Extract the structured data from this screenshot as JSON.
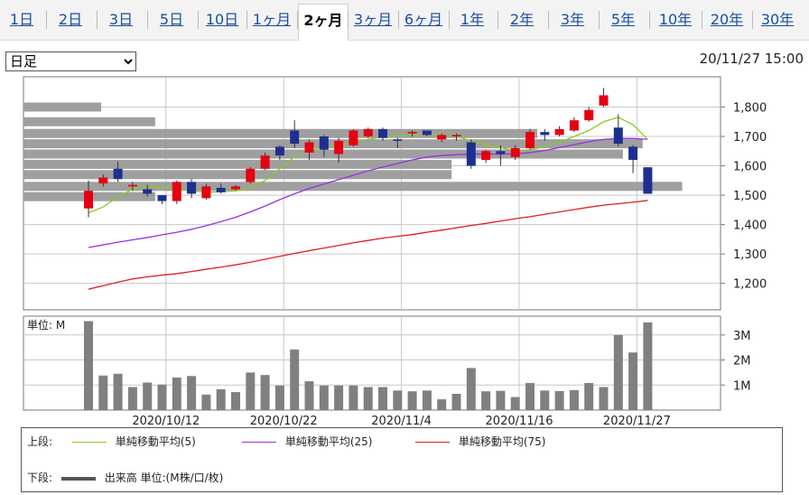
{
  "tabs": [
    {
      "label": "1日",
      "active": false
    },
    {
      "label": "2日",
      "active": false
    },
    {
      "label": "3日",
      "active": false
    },
    {
      "label": "5日",
      "active": false
    },
    {
      "label": "10日",
      "active": false
    },
    {
      "label": "1ヶ月",
      "active": false
    },
    {
      "label": "2ヶ月",
      "active": true
    },
    {
      "label": "3ヶ月",
      "active": false
    },
    {
      "label": "6ヶ月",
      "active": false
    },
    {
      "label": "1年",
      "active": false
    },
    {
      "label": "2年",
      "active": false
    },
    {
      "label": "3年",
      "active": false
    },
    {
      "label": "5年",
      "active": false
    },
    {
      "label": "10年",
      "active": false
    },
    {
      "label": "20年",
      "active": false
    },
    {
      "label": "30年",
      "active": false
    }
  ],
  "select": {
    "value": "日足",
    "options": [
      "日足"
    ]
  },
  "timestamp": "20/11/27 15:00",
  "legend": {
    "upper_label": "上段:",
    "lower_label": "下段:",
    "ma5": "単純移動平均(5)",
    "ma25": "単純移動平均(25)",
    "ma75": "単純移動平均(75)",
    "volume": "出来高 単位:(M株/口/枚)"
  },
  "colors": {
    "up": "#e60012",
    "down": "#1f2f8f",
    "ma5": "#88cc22",
    "ma25": "#9b30e0",
    "ma75": "#e02020",
    "volume": "#808080",
    "profile": "#9a9a9a",
    "grid": "#c8c8c8"
  },
  "chart_data": {
    "type": "candlestick",
    "price_ylim": [
      1150,
      1900
    ],
    "price_ticks": [
      "1,800",
      "1,700",
      "1,600",
      "1,500",
      "1,400",
      "1,300",
      "1,200"
    ],
    "volume_ylim": [
      0,
      3.75
    ],
    "volume_ticks": [
      "3M",
      "2M",
      "1M"
    ],
    "volume_unit_label": "単位: M",
    "x_tick_labels": [
      {
        "label": "2020/10/12",
        "index": 6
      },
      {
        "label": "2020/10/22",
        "index": 14
      },
      {
        "label": "2020/11/4",
        "index": 22
      },
      {
        "label": "2020/11/16",
        "index": 30
      },
      {
        "label": "2020/11/27",
        "index": 38
      }
    ],
    "candles": [
      {
        "o": 1455,
        "h": 1550,
        "l": 1425,
        "c": 1515
      },
      {
        "o": 1540,
        "h": 1570,
        "l": 1530,
        "c": 1560
      },
      {
        "o": 1590,
        "h": 1615,
        "l": 1545,
        "c": 1555
      },
      {
        "o": 1530,
        "h": 1545,
        "l": 1515,
        "c": 1535
      },
      {
        "o": 1520,
        "h": 1535,
        "l": 1495,
        "c": 1505
      },
      {
        "o": 1500,
        "h": 1500,
        "l": 1470,
        "c": 1480
      },
      {
        "o": 1480,
        "h": 1550,
        "l": 1470,
        "c": 1545
      },
      {
        "o": 1545,
        "h": 1555,
        "l": 1490,
        "c": 1505
      },
      {
        "o": 1490,
        "h": 1540,
        "l": 1485,
        "c": 1530
      },
      {
        "o": 1525,
        "h": 1540,
        "l": 1505,
        "c": 1510
      },
      {
        "o": 1520,
        "h": 1535,
        "l": 1515,
        "c": 1530
      },
      {
        "o": 1545,
        "h": 1595,
        "l": 1540,
        "c": 1590
      },
      {
        "o": 1590,
        "h": 1645,
        "l": 1585,
        "c": 1635
      },
      {
        "o": 1665,
        "h": 1670,
        "l": 1620,
        "c": 1635
      },
      {
        "o": 1720,
        "h": 1755,
        "l": 1660,
        "c": 1675
      },
      {
        "o": 1645,
        "h": 1690,
        "l": 1620,
        "c": 1680
      },
      {
        "o": 1700,
        "h": 1705,
        "l": 1630,
        "c": 1655
      },
      {
        "o": 1640,
        "h": 1695,
        "l": 1610,
        "c": 1685
      },
      {
        "o": 1670,
        "h": 1725,
        "l": 1665,
        "c": 1720
      },
      {
        "o": 1700,
        "h": 1730,
        "l": 1695,
        "c": 1725
      },
      {
        "o": 1725,
        "h": 1730,
        "l": 1685,
        "c": 1695
      },
      {
        "o": 1690,
        "h": 1695,
        "l": 1660,
        "c": 1685
      },
      {
        "o": 1710,
        "h": 1720,
        "l": 1700,
        "c": 1715
      },
      {
        "o": 1720,
        "h": 1720,
        "l": 1700,
        "c": 1705
      },
      {
        "o": 1690,
        "h": 1710,
        "l": 1680,
        "c": 1705
      },
      {
        "o": 1700,
        "h": 1710,
        "l": 1685,
        "c": 1705
      },
      {
        "o": 1680,
        "h": 1690,
        "l": 1590,
        "c": 1600
      },
      {
        "o": 1620,
        "h": 1655,
        "l": 1610,
        "c": 1650
      },
      {
        "o": 1650,
        "h": 1670,
        "l": 1600,
        "c": 1640
      },
      {
        "o": 1630,
        "h": 1670,
        "l": 1620,
        "c": 1660
      },
      {
        "o": 1660,
        "h": 1725,
        "l": 1655,
        "c": 1715
      },
      {
        "o": 1715,
        "h": 1725,
        "l": 1685,
        "c": 1705
      },
      {
        "o": 1705,
        "h": 1735,
        "l": 1700,
        "c": 1725
      },
      {
        "o": 1720,
        "h": 1765,
        "l": 1715,
        "c": 1755
      },
      {
        "o": 1755,
        "h": 1800,
        "l": 1750,
        "c": 1790
      },
      {
        "o": 1805,
        "h": 1865,
        "l": 1800,
        "c": 1840
      },
      {
        "o": 1730,
        "h": 1775,
        "l": 1665,
        "c": 1675
      },
      {
        "o": 1665,
        "h": 1670,
        "l": 1575,
        "c": 1620
      },
      {
        "o": 1595,
        "h": 1595,
        "l": 1505,
        "c": 1505
      }
    ],
    "ma5": [
      1440,
      1460,
      1495,
      1520,
      1530,
      1525,
      1520,
      1515,
      1510,
      1512,
      1515,
      1525,
      1550,
      1590,
      1630,
      1650,
      1665,
      1670,
      1680,
      1690,
      1698,
      1702,
      1705,
      1708,
      1706,
      1700,
      1685,
      1672,
      1662,
      1650,
      1655,
      1665,
      1680,
      1700,
      1720,
      1750,
      1765,
      1740,
      1690
    ],
    "ma25": [
      1322,
      1331,
      1340,
      1348,
      1356,
      1365,
      1374,
      1384,
      1396,
      1410,
      1425,
      1443,
      1463,
      1485,
      1505,
      1523,
      1538,
      1553,
      1568,
      1583,
      1596,
      1608,
      1620,
      1630,
      1635,
      1638,
      1640,
      1640,
      1640,
      1641,
      1645,
      1652,
      1662,
      1672,
      1682,
      1690,
      1693,
      1693,
      1690
    ],
    "ma75": [
      1180,
      1192,
      1204,
      1215,
      1222,
      1228,
      1233,
      1240,
      1248,
      1255,
      1263,
      1272,
      1282,
      1292,
      1302,
      1311,
      1320,
      1329,
      1338,
      1346,
      1354,
      1360,
      1366,
      1374,
      1381,
      1389,
      1397,
      1404,
      1412,
      1420,
      1427,
      1435,
      1443,
      1451,
      1459,
      1466,
      1471,
      1476,
      1482
    ],
    "volume": [
      3.55,
      1.38,
      1.45,
      0.92,
      1.1,
      1.02,
      1.3,
      1.36,
      0.62,
      0.83,
      0.72,
      1.5,
      1.4,
      0.98,
      2.42,
      1.15,
      0.98,
      0.98,
      0.98,
      0.92,
      0.92,
      0.78,
      0.75,
      0.78,
      0.43,
      0.65,
      1.68,
      0.75,
      0.77,
      0.52,
      1.08,
      0.78,
      0.76,
      0.8,
      1.08,
      0.92,
      3.0,
      2.3,
      3.5
    ],
    "volume_profile": [
      {
        "price": 1800,
        "extent": 0.118
      },
      {
        "price": 1750,
        "extent": 0.2
      },
      {
        "price": 1710,
        "extent": 0.78
      },
      {
        "price": 1675,
        "extent": 0.94
      },
      {
        "price": 1640,
        "extent": 0.91
      },
      {
        "price": 1605,
        "extent": 0.65
      },
      {
        "price": 1570,
        "extent": 0.65
      },
      {
        "price": 1530,
        "extent": 1.0
      },
      {
        "price": 1495,
        "extent": 0.2
      }
    ]
  }
}
